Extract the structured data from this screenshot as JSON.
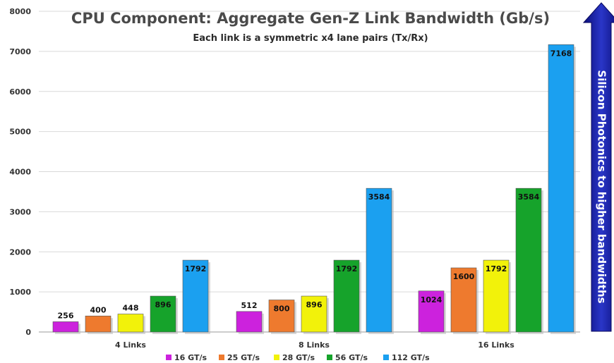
{
  "chart_data": {
    "type": "bar",
    "title": "CPU Component: Aggregate Gen-Z Link Bandwidth (Gb/s)",
    "subtitle": "Each link is a symmetric x4 lane pairs (Tx/Rx)",
    "categories": [
      "4 Links",
      "8 Links",
      "16 Links"
    ],
    "series": [
      {
        "name": "16 GT/s",
        "color": "#cc22dd",
        "values": [
          256,
          512,
          1024
        ]
      },
      {
        "name": "25 GT/s",
        "color": "#ee7a2e",
        "values": [
          400,
          800,
          1600
        ]
      },
      {
        "name": "28 GT/s",
        "color": "#f2f20a",
        "values": [
          448,
          896,
          1792
        ]
      },
      {
        "name": "56 GT/s",
        "color": "#16a32b",
        "values": [
          896,
          1792,
          3584
        ]
      },
      {
        "name": "112 GT/s",
        "color": "#1ba0f0",
        "values": [
          1792,
          3584,
          7168
        ]
      }
    ],
    "ylim": [
      0,
      8000
    ],
    "yticks": [
      "0",
      "1000",
      "2000",
      "3000",
      "4000",
      "5000",
      "6000",
      "7000",
      "8000"
    ],
    "grid": true,
    "legend": "bottom",
    "annotation": "Silicon Photonics to higher bandwidths",
    "annotation_color": "#1a1a9c"
  }
}
